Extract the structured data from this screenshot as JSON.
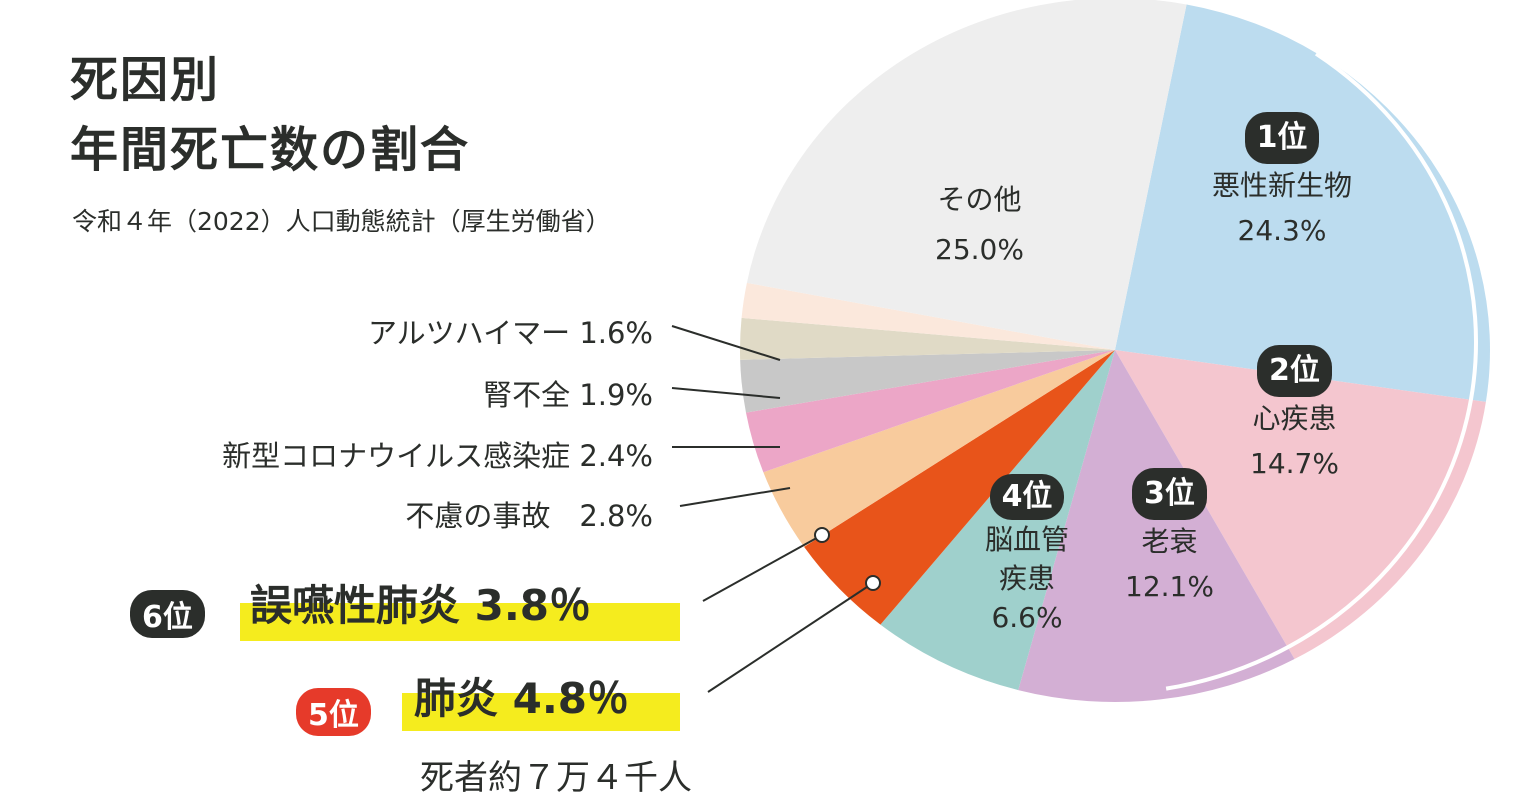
{
  "chart_data": {
    "type": "pie",
    "title": "死因別 年間死亡数の割合",
    "title_lines": [
      "死因別",
      "年間死亡数の割合"
    ],
    "subtitle": "令和４年（2022）人口動態統計（厚生労働省）",
    "slices": [
      {
        "name": "悪性新生物",
        "value": 24.3,
        "label": "24.3%",
        "rank": "1位",
        "color": "#bcdcef"
      },
      {
        "name": "心疾患",
        "value": 14.7,
        "label": "14.7%",
        "rank": "2位",
        "color": "#f4c6cf"
      },
      {
        "name": "老衰",
        "value": 12.1,
        "label": "12.1%",
        "rank": "3位",
        "color": "#d3afd4"
      },
      {
        "name": "脳血管疾患",
        "value": 6.6,
        "label": "6.6%",
        "rank": "4位",
        "color": "#9fd0cc"
      },
      {
        "name": "肺炎",
        "value": 4.8,
        "label": "4.8%",
        "rank": "5位",
        "color": "#e8541a"
      },
      {
        "name": "誤嚥性肺炎",
        "value": 3.8,
        "label": "3.8%",
        "rank": "6位",
        "color": "#f8cb9d"
      },
      {
        "name": "不慮の事故",
        "value": 2.8,
        "label": "2.8%",
        "color": "#eca6c7"
      },
      {
        "name": "新型コロナウイルス感染症",
        "value": 2.4,
        "label": "2.4%",
        "color": "#c8c8c8"
      },
      {
        "name": "腎不全",
        "value": 1.9,
        "label": "1.9%",
        "color": "#e0dac6"
      },
      {
        "name": "アルツハイマー",
        "value": 1.6,
        "label": "1.6%",
        "color": "#fbe8dc"
      },
      {
        "name": "その他",
        "value": 25.0,
        "label": "25.0%",
        "color": "#eeeeee"
      }
    ],
    "annotation": "死者約７万４千人"
  },
  "labels": {
    "l0": "悪性新生物",
    "l1a": "心疾患",
    "l2": "老衰",
    "l3a": "脳血管",
    "l3b": "疾患",
    "l10": "その他",
    "s9": "アルツハイマー 1.6%",
    "s8": "腎不全 1.9%",
    "s7": "新型コロナウイルス感染症 2.4%",
    "s6": "不慮の事故　2.8%",
    "b5": "誤嚥性肺炎 3.8％",
    "b4": "肺炎 4.8％"
  }
}
